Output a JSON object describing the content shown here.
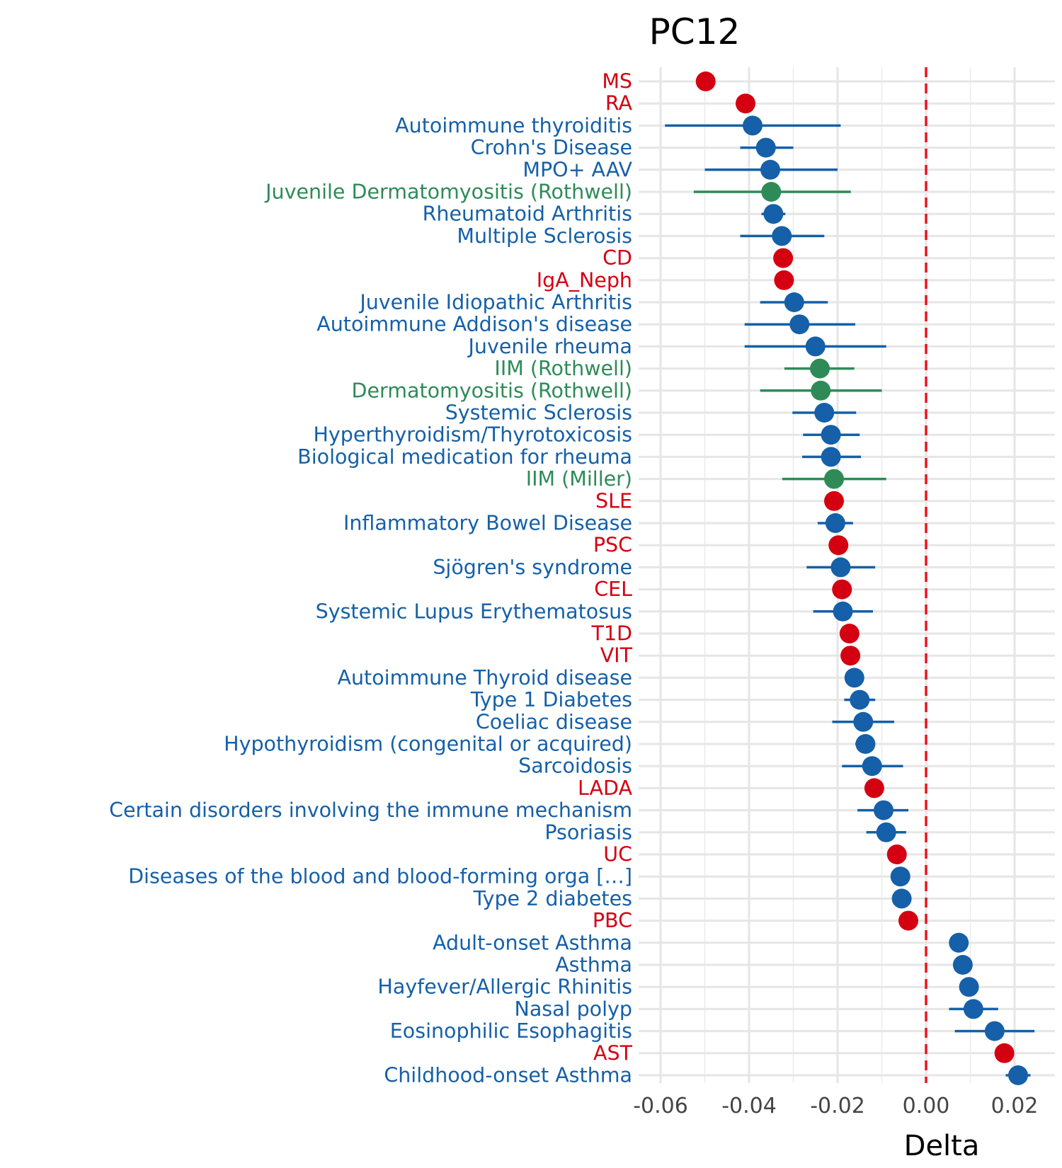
{
  "chart_data": {
    "type": "forest",
    "title": "PC12",
    "xlabel": "Delta",
    "ylabel": "",
    "xlim": [
      -0.0635,
      0.0295
    ],
    "xticks": [
      -0.06,
      -0.04,
      -0.02,
      0.0,
      0.02
    ],
    "xtick_labels": [
      "-0.06",
      "-0.04",
      "-0.02",
      "0.00",
      "0.02"
    ],
    "reference_line": {
      "x": 0,
      "style": "dashed",
      "color": "#e8161c"
    },
    "grid": true,
    "category_colors": {
      "red": "#d40012",
      "blue": "#1560a8",
      "green": "#2e8b57"
    },
    "points": [
      {
        "label": "MS",
        "delta": -0.0498,
        "low": null,
        "high": null,
        "group": "red"
      },
      {
        "label": "RA",
        "delta": -0.0408,
        "low": null,
        "high": null,
        "group": "red"
      },
      {
        "label": "Autoimmune thyroiditis",
        "delta": -0.0392,
        "low": -0.059,
        "high": -0.0193,
        "group": "blue"
      },
      {
        "label": "Crohn's Disease",
        "delta": -0.0362,
        "low": -0.042,
        "high": -0.03,
        "group": "blue"
      },
      {
        "label": "MPO+ AAV",
        "delta": -0.0352,
        "low": -0.05,
        "high": -0.02,
        "group": "blue"
      },
      {
        "label": "Juvenile Dermatomyositis (Rothwell)",
        "delta": -0.035,
        "low": -0.0525,
        "high": -0.017,
        "group": "green"
      },
      {
        "label": "Rheumatoid Arthritis",
        "delta": -0.0345,
        "low": -0.0372,
        "high": -0.0318,
        "group": "blue"
      },
      {
        "label": "Multiple Sclerosis",
        "delta": -0.0326,
        "low": -0.042,
        "high": -0.023,
        "group": "blue"
      },
      {
        "label": "CD",
        "delta": -0.0323,
        "low": null,
        "high": null,
        "group": "red"
      },
      {
        "label": "IgA_Neph",
        "delta": -0.0321,
        "low": null,
        "high": null,
        "group": "red"
      },
      {
        "label": "Juvenile Idiopathic Arthritis",
        "delta": -0.0298,
        "low": -0.0375,
        "high": -0.0222,
        "group": "blue"
      },
      {
        "label": "Autoimmune Addison's disease",
        "delta": -0.0286,
        "low": -0.041,
        "high": -0.016,
        "group": "blue"
      },
      {
        "label": "Juvenile rheuma",
        "delta": -0.025,
        "low": -0.041,
        "high": -0.009,
        "group": "blue"
      },
      {
        "label": "IIM (Rothwell)",
        "delta": -0.024,
        "low": -0.032,
        "high": -0.0162,
        "group": "green"
      },
      {
        "label": "Dermatomyositis (Rothwell)",
        "delta": -0.0238,
        "low": -0.0375,
        "high": -0.01,
        "group": "green"
      },
      {
        "label": "Systemic Sclerosis",
        "delta": -0.023,
        "low": -0.0302,
        "high": -0.0158,
        "group": "blue"
      },
      {
        "label": "Hyperthyroidism/Thyrotoxicosis",
        "delta": -0.0215,
        "low": -0.0278,
        "high": -0.015,
        "group": "blue"
      },
      {
        "label": "Biological medication for rheuma",
        "delta": -0.0215,
        "low": -0.028,
        "high": -0.0147,
        "group": "blue"
      },
      {
        "label": "IIM (Miller)",
        "delta": -0.0208,
        "low": -0.0325,
        "high": -0.009,
        "group": "green"
      },
      {
        "label": "SLE",
        "delta": -0.0208,
        "low": null,
        "high": null,
        "group": "red"
      },
      {
        "label": "Inflammatory Bowel Disease",
        "delta": -0.0205,
        "low": -0.0245,
        "high": -0.0165,
        "group": "blue"
      },
      {
        "label": "PSC",
        "delta": -0.0198,
        "low": null,
        "high": null,
        "group": "red"
      },
      {
        "label": "Sjögren's syndrome",
        "delta": -0.0193,
        "low": -0.027,
        "high": -0.0115,
        "group": "blue"
      },
      {
        "label": "CEL",
        "delta": -0.019,
        "low": null,
        "high": null,
        "group": "red"
      },
      {
        "label": "Systemic Lupus Erythematosus",
        "delta": -0.0188,
        "low": -0.0255,
        "high": -0.012,
        "group": "blue"
      },
      {
        "label": "T1D",
        "delta": -0.0173,
        "low": null,
        "high": null,
        "group": "red"
      },
      {
        "label": "VIT",
        "delta": -0.0171,
        "low": null,
        "high": null,
        "group": "red"
      },
      {
        "label": "Autoimmune Thyroid disease",
        "delta": -0.0162,
        "low": -0.0175,
        "high": -0.015,
        "group": "blue"
      },
      {
        "label": "Type 1 Diabetes",
        "delta": -0.015,
        "low": -0.0185,
        "high": -0.0115,
        "group": "blue"
      },
      {
        "label": "Coeliac disease",
        "delta": -0.0142,
        "low": -0.0212,
        "high": -0.0072,
        "group": "blue"
      },
      {
        "label": "Hypothyroidism (congenital or acquired)",
        "delta": -0.0137,
        "low": -0.016,
        "high": -0.0115,
        "group": "blue"
      },
      {
        "label": "Sarcoidosis",
        "delta": -0.0122,
        "low": -0.019,
        "high": -0.0052,
        "group": "blue"
      },
      {
        "label": "LADA",
        "delta": -0.0117,
        "low": null,
        "high": null,
        "group": "red"
      },
      {
        "label": "Certain disorders involving the immune mechanism",
        "delta": -0.0096,
        "low": -0.0155,
        "high": -0.004,
        "group": "blue"
      },
      {
        "label": "Psoriasis",
        "delta": -0.009,
        "low": -0.0135,
        "high": -0.0045,
        "group": "blue"
      },
      {
        "label": "UC",
        "delta": -0.0066,
        "low": null,
        "high": null,
        "group": "red"
      },
      {
        "label": "Diseases of the blood and blood-forming orga […]",
        "delta": -0.0058,
        "low": -0.0068,
        "high": -0.0048,
        "group": "blue"
      },
      {
        "label": "Type 2 diabetes",
        "delta": -0.0055,
        "low": -0.0063,
        "high": -0.0047,
        "group": "blue"
      },
      {
        "label": "PBC",
        "delta": -0.004,
        "low": null,
        "high": null,
        "group": "red"
      },
      {
        "label": "Adult-onset Asthma",
        "delta": 0.0074,
        "low": 0.0064,
        "high": 0.0084,
        "group": "blue"
      },
      {
        "label": "Asthma",
        "delta": 0.0083,
        "low": 0.0075,
        "high": 0.0091,
        "group": "blue"
      },
      {
        "label": "Hayfever/Allergic Rhinitis",
        "delta": 0.0097,
        "low": 0.0085,
        "high": 0.011,
        "group": "blue"
      },
      {
        "label": "Nasal polyp",
        "delta": 0.0107,
        "low": 0.0052,
        "high": 0.0163,
        "group": "blue"
      },
      {
        "label": "Eosinophilic Esophagitis",
        "delta": 0.0155,
        "low": 0.0065,
        "high": 0.0245,
        "group": "blue"
      },
      {
        "label": "AST",
        "delta": 0.0177,
        "low": null,
        "high": null,
        "group": "red"
      },
      {
        "label": "Childhood-onset Asthma",
        "delta": 0.0208,
        "low": 0.018,
        "high": 0.0236,
        "group": "blue"
      }
    ]
  }
}
